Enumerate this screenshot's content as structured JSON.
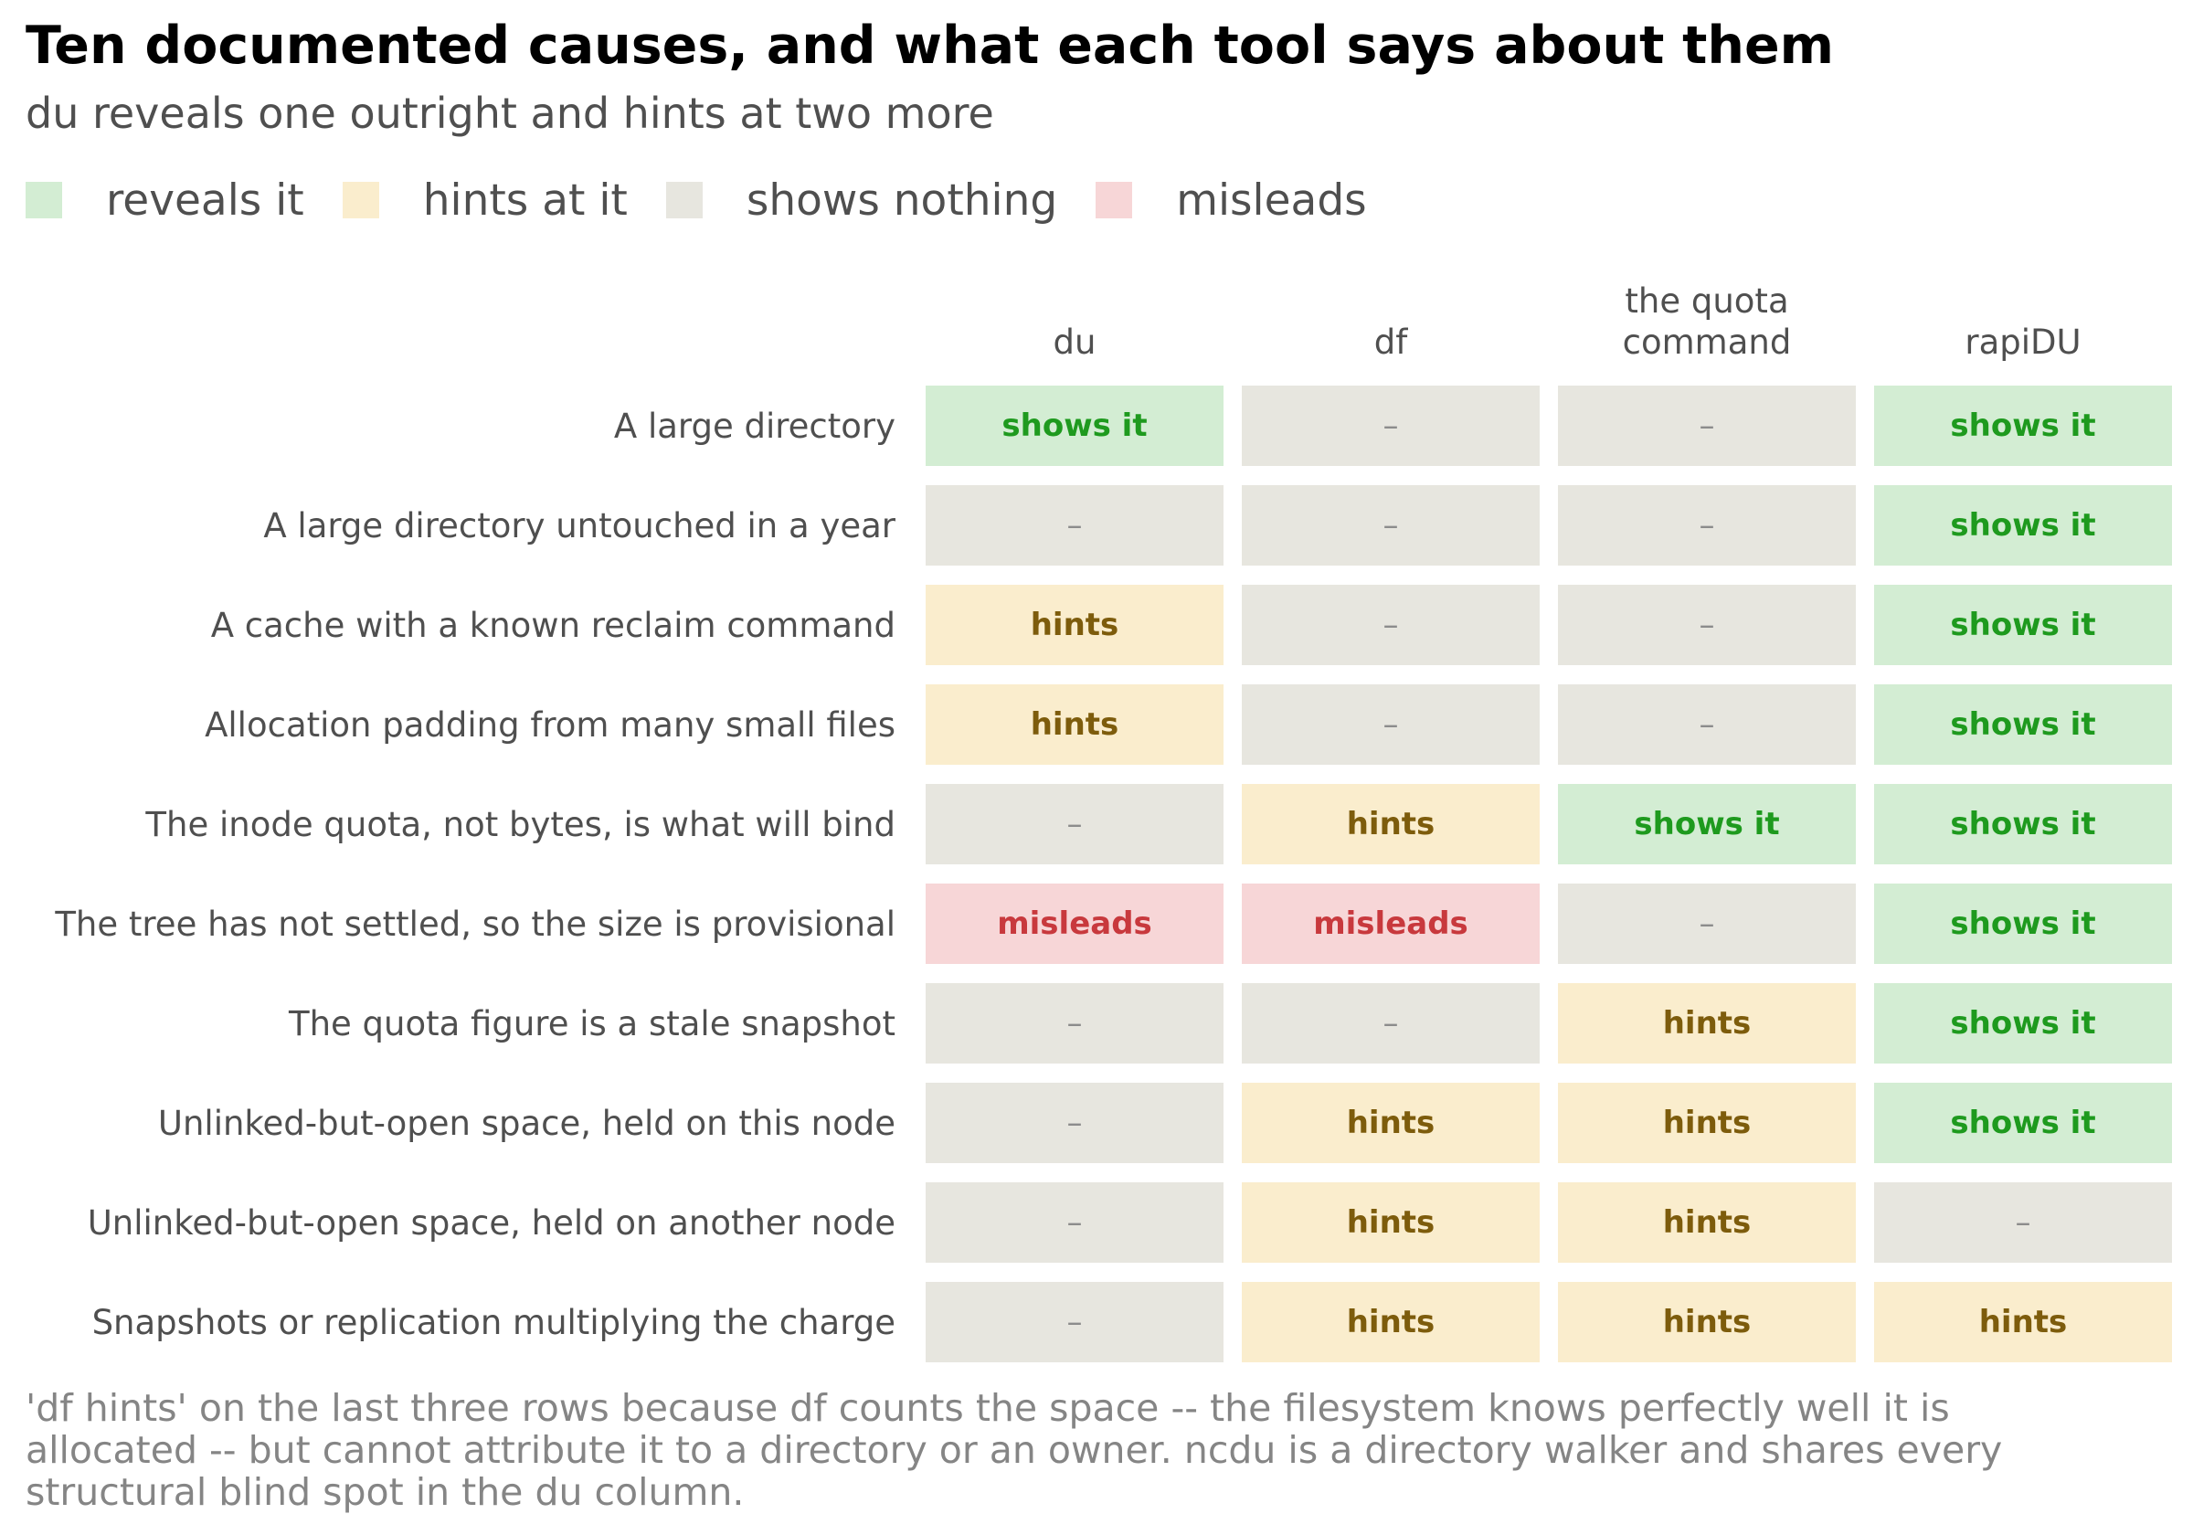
{
  "title": "Ten documented causes, and what each tool says about them",
  "subtitle": "du reveals one outright and hints at two more",
  "legend": [
    {
      "label": "reveals it",
      "color": "#d3edd3"
    },
    {
      "label": "hints at it",
      "color": "#faedcd"
    },
    {
      "label": "shows nothing",
      "color": "#e7e6df"
    },
    {
      "label": "misleads",
      "color": "#f7d6d7"
    }
  ],
  "chart_data": {
    "type": "table",
    "columns": [
      "du",
      "df",
      "the quota\ncommand",
      "rapiDU"
    ],
    "rows": [
      {
        "label": "A large directory",
        "values": [
          "shows it",
          "–",
          "–",
          "shows it"
        ]
      },
      {
        "label": "A large directory untouched in a year",
        "values": [
          "–",
          "–",
          "–",
          "shows it"
        ]
      },
      {
        "label": "A cache with a known reclaim command",
        "values": [
          "hints",
          "–",
          "–",
          "shows it"
        ]
      },
      {
        "label": "Allocation padding from many small files",
        "values": [
          "hints",
          "–",
          "–",
          "shows it"
        ]
      },
      {
        "label": "The inode quota, not bytes, is what will bind",
        "values": [
          "–",
          "hints",
          "shows it",
          "shows it"
        ]
      },
      {
        "label": "The tree has not settled, so the size is provisional",
        "values": [
          "misleads",
          "misleads",
          "–",
          "shows it"
        ]
      },
      {
        "label": "The quota figure is a stale snapshot",
        "values": [
          "–",
          "–",
          "hints",
          "shows it"
        ]
      },
      {
        "label": "Unlinked-but-open space, held on this node",
        "values": [
          "–",
          "hints",
          "hints",
          "shows it"
        ]
      },
      {
        "label": "Unlinked-but-open space, held on another node",
        "values": [
          "–",
          "hints",
          "hints",
          "–"
        ]
      },
      {
        "label": "Snapshots or replication multiplying the charge",
        "values": [
          "–",
          "hints",
          "hints",
          "hints"
        ]
      }
    ],
    "styles": {
      "shows it": {
        "bg": "#d3edd3",
        "fg": "#1e9a1e"
      },
      "hints": {
        "bg": "#faedcd",
        "fg": "#7d5c0c"
      },
      "–": {
        "bg": "#e7e6df",
        "fg": "#8c8c8c"
      },
      "misleads": {
        "bg": "#f7d6d7",
        "fg": "#c8393d"
      }
    }
  },
  "footnote": "'df hints' on the last three rows because df counts the space -- the filesystem knows perfectly well it is allocated -- but cannot attribute it to a directory or an owner. ncdu is a directory walker and shares every structural blind spot in the du column."
}
